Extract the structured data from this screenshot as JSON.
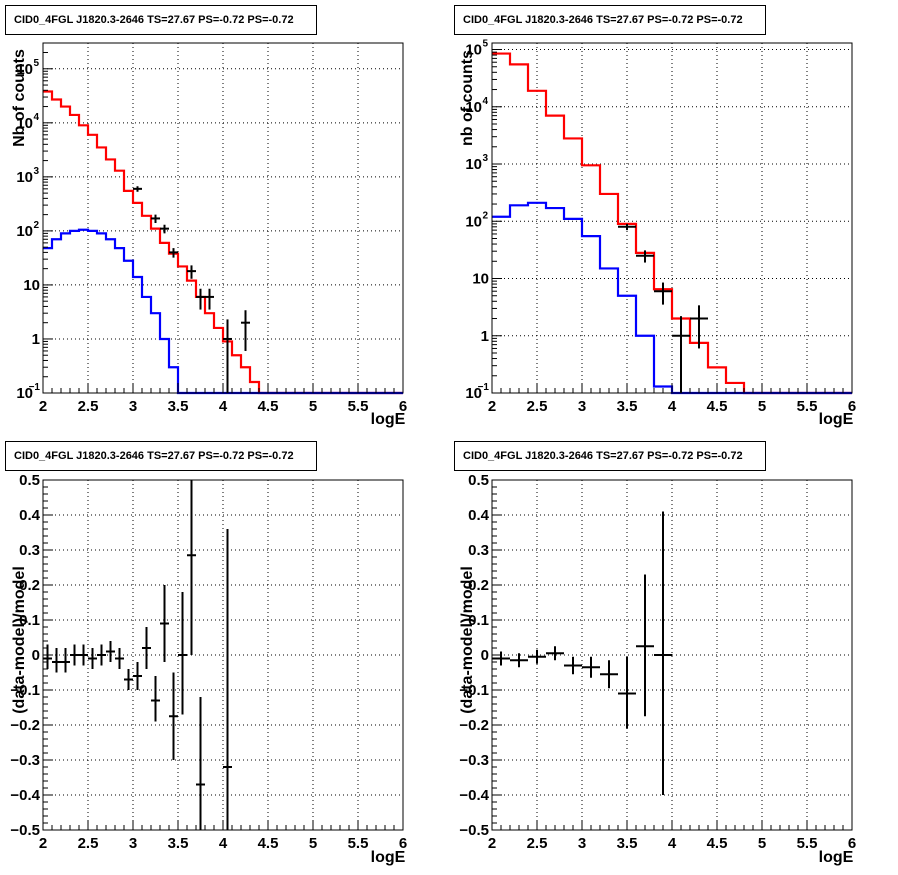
{
  "chart_data": [
    {
      "type": "line",
      "title": "CID0_4FGL J1820.3-2646 TS=27.67 PS=-0.72 PS=-0.72",
      "xlabel": "logE",
      "ylabel": "Nb of counts",
      "xlim": [
        2,
        6
      ],
      "ylim": [
        0.1,
        300000
      ],
      "ylog": true,
      "grid": true,
      "xticks": [
        "2",
        "2.5",
        "3",
        "3.5",
        "4",
        "4.5",
        "5",
        "5.5",
        "6"
      ],
      "yticks": [
        {
          "v": 0.1,
          "t": "10"
        },
        {
          "v": 1,
          "t": "1"
        },
        {
          "v": 10,
          "t": "10"
        },
        {
          "v": 100,
          "t": "10"
        },
        {
          "v": 1000,
          "t": "10"
        },
        {
          "v": 10000,
          "t": "10"
        },
        {
          "v": 100000,
          "t": "10"
        }
      ],
      "yexp": [
        "−1",
        "",
        "",
        "2",
        "3",
        "4",
        "5"
      ],
      "series": [
        {
          "color": "#ff0000",
          "kind": "hist",
          "edges": [
            2.0,
            2.1,
            2.2,
            2.3,
            2.4,
            2.5,
            2.6,
            2.7,
            2.8,
            2.9,
            3.0,
            3.1,
            3.2,
            3.3,
            3.4,
            3.5,
            3.6,
            3.7,
            3.8,
            3.9,
            4.0,
            4.1,
            4.2,
            4.3,
            4.4,
            4.5,
            4.6,
            4.7,
            4.8,
            4.9,
            5.0,
            5.1,
            5.2,
            5.3,
            5.4,
            5.5,
            5.6,
            5.7,
            5.8,
            5.9,
            6.0
          ],
          "values": [
            38000,
            27000,
            20000,
            14000,
            9000,
            6000,
            3500,
            2100,
            1300,
            550,
            330,
            190,
            110,
            60,
            38,
            22,
            12,
            6,
            3,
            1.6,
            0.9,
            0.5,
            0.3,
            0.16,
            0.1,
            0.1,
            0.1,
            0.1,
            0.1,
            0.1,
            0.1,
            0.1,
            0.1,
            0.1,
            0.1,
            0.1,
            0.1,
            0.1,
            0.1,
            0.1
          ]
        },
        {
          "color": "#0000ff",
          "kind": "hist",
          "edges": [
            2.0,
            2.1,
            2.2,
            2.3,
            2.4,
            2.5,
            2.6,
            2.7,
            2.8,
            2.9,
            3.0,
            3.1,
            3.2,
            3.3,
            3.4,
            3.5,
            3.6,
            3.7,
            3.8,
            3.9,
            4.0,
            4.1,
            4.2,
            4.3,
            4.4,
            4.5,
            4.6,
            4.7,
            4.8,
            4.9,
            5.0,
            5.1,
            5.2,
            5.3,
            5.4,
            5.5,
            5.6,
            5.7,
            5.8,
            5.9,
            6.0
          ],
          "values": [
            48,
            70,
            90,
            100,
            105,
            100,
            90,
            70,
            48,
            28,
            14,
            6,
            3,
            1,
            0.3,
            0.1,
            0.1,
            0.1,
            0.1,
            0.1,
            0.1,
            0.1,
            0.1,
            0.1,
            0.1,
            0.1,
            0.1,
            0.1,
            0.1,
            0.1,
            0.1,
            0.1,
            0.1,
            0.1,
            0.1,
            0.1,
            0.1,
            0.1,
            0.1,
            0.1
          ]
        },
        {
          "color": "#000000",
          "kind": "points",
          "points": [
            {
              "x": 3.05,
              "y": 600,
              "xerr": 0.05,
              "ylo": 530,
              "yhi": 670
            },
            {
              "x": 3.25,
              "y": 170,
              "xerr": 0.05,
              "ylo": 140,
              "yhi": 200
            },
            {
              "x": 3.35,
              "y": 110,
              "xerr": 0.05,
              "ylo": 90,
              "yhi": 130
            },
            {
              "x": 3.45,
              "y": 40,
              "xerr": 0.05,
              "ylo": 32,
              "yhi": 48
            },
            {
              "x": 3.65,
              "y": 18,
              "xerr": 0.05,
              "ylo": 13,
              "yhi": 23
            },
            {
              "x": 3.75,
              "y": 6,
              "xerr": 0.05,
              "ylo": 3.5,
              "yhi": 8.5
            },
            {
              "x": 3.85,
              "y": 6,
              "xerr": 0.05,
              "ylo": 3.5,
              "yhi": 8.5
            },
            {
              "x": 4.05,
              "y": 1,
              "xerr": 0.05,
              "ylo": 0.1,
              "yhi": 2.3
            },
            {
              "x": 4.25,
              "y": 2,
              "xerr": 0.05,
              "ylo": 0.6,
              "yhi": 3.4
            }
          ]
        }
      ]
    },
    {
      "type": "line",
      "title": "CID0_4FGL J1820.3-2646 TS=27.67 PS=-0.72 PS=-0.72",
      "xlabel": "logE",
      "ylabel": "nb of counts",
      "xlim": [
        2,
        6
      ],
      "ylim": [
        0.1,
        130000
      ],
      "ylog": true,
      "grid": true,
      "xticks": [
        "2",
        "2.5",
        "3",
        "3.5",
        "4",
        "4.5",
        "5",
        "5.5",
        "6"
      ],
      "yticks": [
        {
          "v": 0.1,
          "t": "10"
        },
        {
          "v": 1,
          "t": "1"
        },
        {
          "v": 10,
          "t": "10"
        },
        {
          "v": 100,
          "t": "10"
        },
        {
          "v": 1000,
          "t": "10"
        },
        {
          "v": 10000,
          "t": "10"
        },
        {
          "v": 100000,
          "t": "10"
        }
      ],
      "yexp": [
        "−1",
        "",
        "",
        "2",
        "3",
        "4",
        "5"
      ],
      "series": [
        {
          "color": "#ff0000",
          "kind": "hist",
          "edges": [
            2.0,
            2.2,
            2.4,
            2.6,
            2.8,
            3.0,
            3.2,
            3.4,
            3.6,
            3.8,
            4.0,
            4.2,
            4.4,
            4.6,
            4.8,
            5.0,
            5.2,
            5.4,
            5.6,
            5.8,
            6.0
          ],
          "values": [
            85000,
            55000,
            19000,
            7000,
            2800,
            950,
            300,
            90,
            28,
            6.5,
            2,
            0.75,
            0.28,
            0.15,
            0.1,
            0.1,
            0.1,
            0.1,
            0.1,
            0.1
          ]
        },
        {
          "color": "#0000ff",
          "kind": "hist",
          "edges": [
            2.0,
            2.2,
            2.4,
            2.6,
            2.8,
            3.0,
            3.2,
            3.4,
            3.6,
            3.8,
            4.0,
            4.2,
            4.4,
            4.6,
            4.8,
            5.0,
            5.2,
            5.4,
            5.6,
            5.8,
            6.0
          ],
          "values": [
            120,
            190,
            210,
            170,
            110,
            55,
            15,
            5,
            1,
            0.13,
            0.1,
            0.1,
            0.1,
            0.1,
            0.1,
            0.1,
            0.1,
            0.1,
            0.1,
            0.1
          ]
        },
        {
          "color": "#000000",
          "kind": "points",
          "points": [
            {
              "x": 3.5,
              "y": 80,
              "xerr": 0.1,
              "ylo": 70,
              "yhi": 90
            },
            {
              "x": 3.7,
              "y": 25,
              "xerr": 0.1,
              "ylo": 19,
              "yhi": 31
            },
            {
              "x": 3.9,
              "y": 6,
              "xerr": 0.1,
              "ylo": 3.5,
              "yhi": 8.5
            },
            {
              "x": 4.1,
              "y": 1,
              "xerr": 0.1,
              "ylo": 0.1,
              "yhi": 2.2
            },
            {
              "x": 4.3,
              "y": 2,
              "xerr": 0.1,
              "ylo": 0.6,
              "yhi": 3.4
            }
          ]
        }
      ]
    },
    {
      "type": "scatter",
      "title": "CID0_4FGL J1820.3-2646 TS=27.67 PS=-0.72 PS=-0.72",
      "xlabel": "logE",
      "ylabel": "(data-model)/model",
      "xlim": [
        2,
        6
      ],
      "ylim": [
        -0.5,
        0.5
      ],
      "ylog": false,
      "grid": true,
      "xticks": [
        "2",
        "2.5",
        "3",
        "3.5",
        "4",
        "4.5",
        "5",
        "5.5",
        "6"
      ],
      "yticks": [
        {
          "v": -0.5,
          "t": "−0.5"
        },
        {
          "v": -0.4,
          "t": "−0.4"
        },
        {
          "v": -0.3,
          "t": "−0.3"
        },
        {
          "v": -0.2,
          "t": "−0.2"
        },
        {
          "v": -0.1,
          "t": "−0.1"
        },
        {
          "v": 0,
          "t": "0"
        },
        {
          "v": 0.1,
          "t": "0.1"
        },
        {
          "v": 0.2,
          "t": "0.2"
        },
        {
          "v": 0.3,
          "t": "0.3"
        },
        {
          "v": 0.4,
          "t": "0.4"
        },
        {
          "v": 0.5,
          "t": "0.5"
        }
      ],
      "series": [
        {
          "color": "#000000",
          "kind": "points",
          "points": [
            {
              "x": 2.05,
              "y": -0.01,
              "xerr": 0.05,
              "ylo": -0.04,
              "yhi": 0.03
            },
            {
              "x": 2.15,
              "y": -0.02,
              "xerr": 0.05,
              "ylo": -0.05,
              "yhi": 0.02
            },
            {
              "x": 2.25,
              "y": -0.02,
              "xerr": 0.05,
              "ylo": -0.05,
              "yhi": 0.02
            },
            {
              "x": 2.35,
              "y": 0.0,
              "xerr": 0.05,
              "ylo": -0.03,
              "yhi": 0.03
            },
            {
              "x": 2.45,
              "y": 0.0,
              "xerr": 0.05,
              "ylo": -0.03,
              "yhi": 0.03
            },
            {
              "x": 2.55,
              "y": -0.01,
              "xerr": 0.05,
              "ylo": -0.04,
              "yhi": 0.02
            },
            {
              "x": 2.65,
              "y": 0.0,
              "xerr": 0.05,
              "ylo": -0.03,
              "yhi": 0.03
            },
            {
              "x": 2.75,
              "y": 0.01,
              "xerr": 0.05,
              "ylo": -0.02,
              "yhi": 0.04
            },
            {
              "x": 2.85,
              "y": -0.01,
              "xerr": 0.05,
              "ylo": -0.04,
              "yhi": 0.02
            },
            {
              "x": 2.95,
              "y": -0.07,
              "xerr": 0.05,
              "ylo": -0.1,
              "yhi": -0.04
            },
            {
              "x": 3.05,
              "y": -0.06,
              "xerr": 0.05,
              "ylo": -0.1,
              "yhi": -0.02
            },
            {
              "x": 3.15,
              "y": 0.02,
              "xerr": 0.05,
              "ylo": -0.04,
              "yhi": 0.08
            },
            {
              "x": 3.25,
              "y": -0.13,
              "xerr": 0.05,
              "ylo": -0.19,
              "yhi": -0.06
            },
            {
              "x": 3.35,
              "y": 0.09,
              "xerr": 0.05,
              "ylo": -0.02,
              "yhi": 0.2
            },
            {
              "x": 3.45,
              "y": -0.175,
              "xerr": 0.05,
              "ylo": -0.3,
              "yhi": -0.05
            },
            {
              "x": 3.55,
              "y": 0.0,
              "xerr": 0.05,
              "ylo": -0.17,
              "yhi": 0.18
            },
            {
              "x": 3.65,
              "y": 0.285,
              "xerr": 0.05,
              "ylo": 0.0,
              "yhi": 0.5
            },
            {
              "x": 3.75,
              "y": -0.37,
              "xerr": 0.05,
              "ylo": -0.5,
              "yhi": -0.12
            },
            {
              "x": 4.05,
              "y": -0.32,
              "xerr": 0.05,
              "ylo": -0.5,
              "yhi": 0.36
            }
          ]
        }
      ]
    },
    {
      "type": "scatter",
      "title": "CID0_4FGL J1820.3-2646 TS=27.67 PS=-0.72 PS=-0.72",
      "xlabel": "logE",
      "ylabel": "(data-model)/model",
      "xlim": [
        2,
        6
      ],
      "ylim": [
        -0.5,
        0.5
      ],
      "ylog": false,
      "grid": true,
      "xticks": [
        "2",
        "2.5",
        "3",
        "3.5",
        "4",
        "4.5",
        "5",
        "5.5",
        "6"
      ],
      "yticks": [
        {
          "v": -0.5,
          "t": "−0.5"
        },
        {
          "v": -0.4,
          "t": "−0.4"
        },
        {
          "v": -0.3,
          "t": "−0.3"
        },
        {
          "v": -0.2,
          "t": "−0.2"
        },
        {
          "v": -0.1,
          "t": "−0.1"
        },
        {
          "v": 0,
          "t": "0"
        },
        {
          "v": 0.1,
          "t": "0.1"
        },
        {
          "v": 0.2,
          "t": "0.2"
        },
        {
          "v": 0.3,
          "t": "0.3"
        },
        {
          "v": 0.4,
          "t": "0.4"
        },
        {
          "v": 0.5,
          "t": "0.5"
        }
      ],
      "series": [
        {
          "color": "#000000",
          "kind": "points",
          "points": [
            {
              "x": 2.1,
              "y": -0.01,
              "xerr": 0.1,
              "ylo": -0.03,
              "yhi": 0.01
            },
            {
              "x": 2.3,
              "y": -0.015,
              "xerr": 0.1,
              "ylo": -0.035,
              "yhi": 0.005
            },
            {
              "x": 2.5,
              "y": -0.005,
              "xerr": 0.1,
              "ylo": -0.025,
              "yhi": 0.015
            },
            {
              "x": 2.7,
              "y": 0.005,
              "xerr": 0.1,
              "ylo": -0.015,
              "yhi": 0.025
            },
            {
              "x": 2.9,
              "y": -0.03,
              "xerr": 0.1,
              "ylo": -0.055,
              "yhi": -0.005
            },
            {
              "x": 3.1,
              "y": -0.035,
              "xerr": 0.1,
              "ylo": -0.065,
              "yhi": -0.005
            },
            {
              "x": 3.3,
              "y": -0.055,
              "xerr": 0.1,
              "ylo": -0.095,
              "yhi": -0.015
            },
            {
              "x": 3.5,
              "y": -0.11,
              "xerr": 0.1,
              "ylo": -0.21,
              "yhi": -0.005
            },
            {
              "x": 3.7,
              "y": 0.025,
              "xerr": 0.1,
              "ylo": -0.175,
              "yhi": 0.23
            },
            {
              "x": 3.9,
              "y": 0.0,
              "xerr": 0.1,
              "ylo": -0.4,
              "yhi": 0.41
            }
          ]
        }
      ]
    }
  ]
}
